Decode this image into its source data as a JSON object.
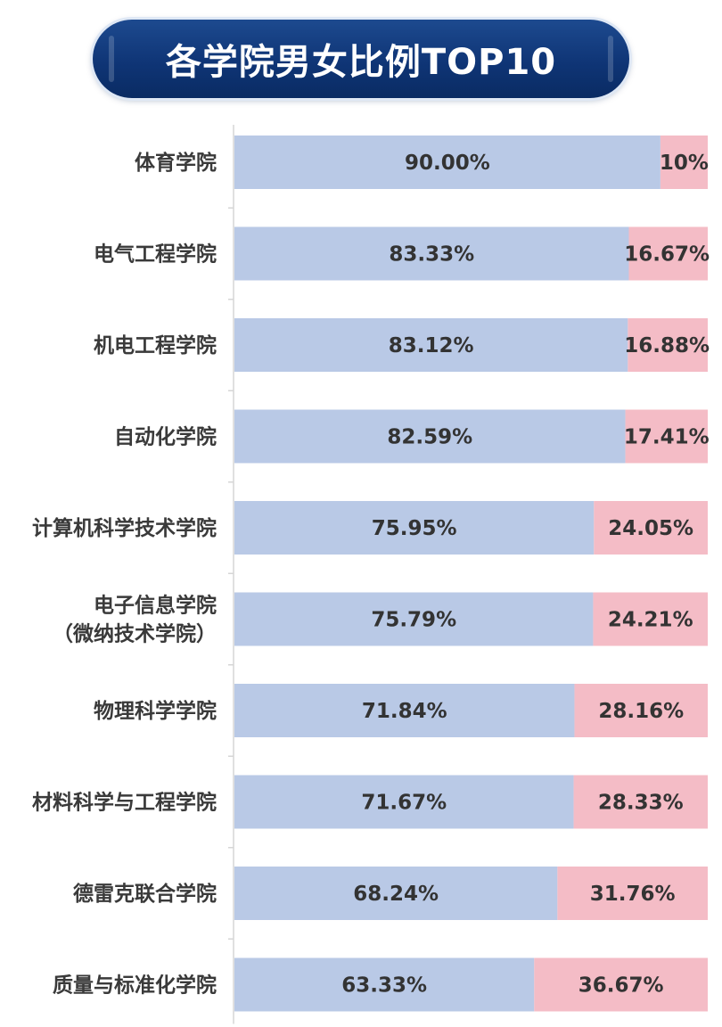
{
  "chart_data": {
    "type": "bar",
    "orientation": "horizontal",
    "stacked": true,
    "normalized": true,
    "title": "各学院男女比例TOP10",
    "categories": [
      "体育学院",
      "电气工程学院",
      "机电工程学院",
      "自动化学院",
      "计算机科学技术学院",
      "电子信息学院\n（微纳技术学院）",
      "物理科学学院",
      "材料科学与工程学院",
      "德雷克联合学院",
      "质量与标准化学院"
    ],
    "series": [
      {
        "color": "#b9c9e6",
        "values": [
          90.0,
          83.33,
          83.12,
          82.59,
          75.95,
          75.79,
          71.84,
          71.67,
          68.24,
          63.33
        ],
        "labels": [
          "90.00%",
          "83.33%",
          "83.12%",
          "82.59%",
          "75.95%",
          "75.79%",
          "71.84%",
          "71.67%",
          "68.24%",
          "63.33%"
        ]
      },
      {
        "color": "#f4bcc6",
        "values": [
          10,
          16.67,
          16.88,
          17.41,
          24.05,
          24.21,
          28.16,
          28.33,
          31.76,
          36.67
        ],
        "labels": [
          "10%",
          "16.67%",
          "16.88%",
          "17.41%",
          "24.05%",
          "24.21%",
          "28.16%",
          "28.33%",
          "31.76%",
          "36.67%"
        ]
      }
    ],
    "xlim": [
      0,
      100
    ],
    "grid": false,
    "legend": "none"
  },
  "colors": {
    "banner": "#0f3576",
    "axis": "#d6d6d6",
    "category_text": "#3a3a3a",
    "value_text": "#333333"
  }
}
